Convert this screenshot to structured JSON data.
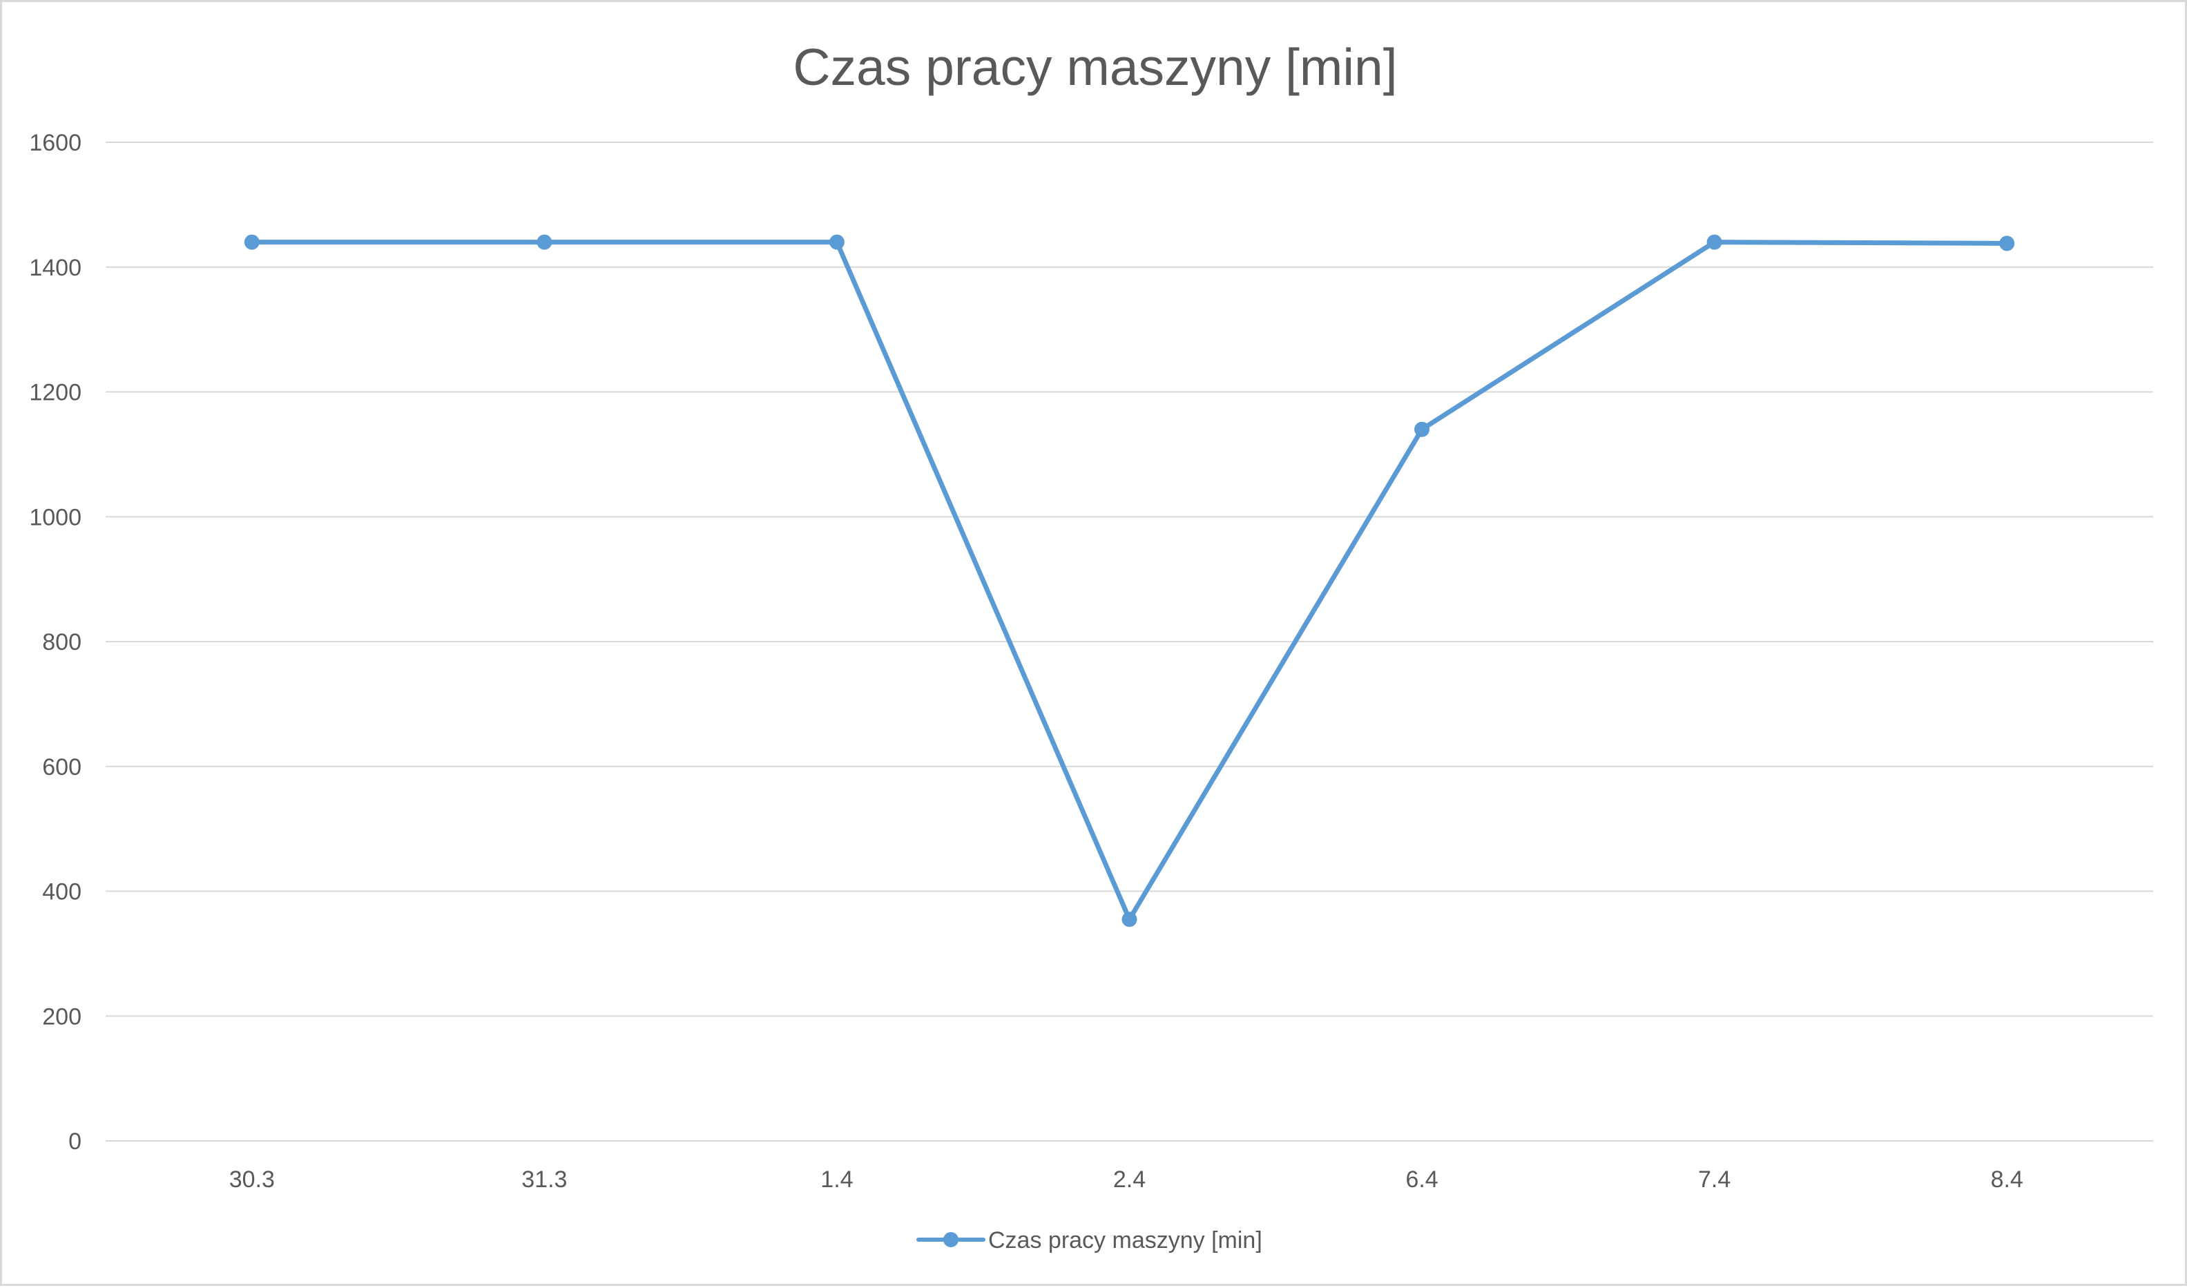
{
  "chart_data": {
    "type": "line",
    "title": "Czas pracy maszyny [min]",
    "xlabel": "",
    "ylabel": "",
    "categories": [
      "30.3",
      "31.3",
      "1.4",
      "2.4",
      "6.4",
      "7.4",
      "8.4"
    ],
    "series": [
      {
        "name": "Czas pracy maszyny [min]",
        "values": [
          1440,
          1440,
          1440,
          355,
          1140,
          1440,
          1438
        ],
        "color": "#5b9bd5"
      }
    ],
    "ylim": [
      0,
      1600
    ],
    "yticks": [
      "0",
      "200",
      "400",
      "600",
      "800",
      "1000",
      "1200",
      "1400",
      "1600"
    ],
    "grid": true,
    "legend": "bottom",
    "colors": {
      "text": "#595959",
      "grid": "#d9d9d9",
      "border": "#d9d9d9",
      "series": "#5b9bd5"
    }
  }
}
